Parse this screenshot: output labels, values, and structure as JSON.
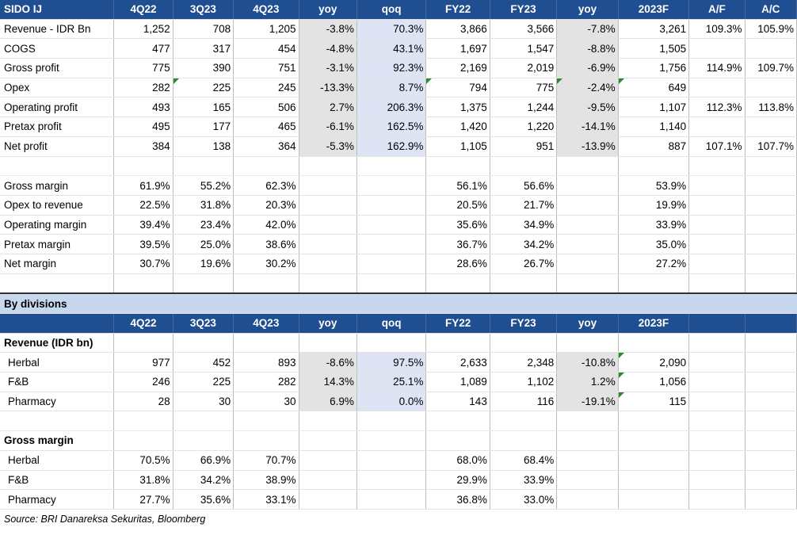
{
  "header": [
    "SIDO IJ",
    "4Q22",
    "3Q23",
    "4Q23",
    "yoy",
    "qoq",
    "FY22",
    "FY23",
    "yoy",
    "2023F",
    "A/F",
    "A/C"
  ],
  "pl_rows": [
    {
      "label": "Revenue - IDR Bn",
      "v": [
        "1,252",
        "708",
        "1,205",
        "-3.8%",
        "70.3%",
        "3,866",
        "3,566",
        "-7.8%",
        "3,261",
        "109.3%",
        "105.9%"
      ]
    },
    {
      "label": "COGS",
      "v": [
        "477",
        "317",
        "454",
        "-4.8%",
        "43.1%",
        "1,697",
        "1,547",
        "-8.8%",
        "1,505",
        "",
        ""
      ]
    },
    {
      "label": "Gross profit",
      "v": [
        "775",
        "390",
        "751",
        "-3.1%",
        "92.3%",
        "2,169",
        "2,019",
        "-6.9%",
        "1,756",
        "114.9%",
        "109.7%"
      ]
    },
    {
      "label": "Opex",
      "v": [
        "282",
        "225",
        "245",
        "-13.3%",
        "8.7%",
        "794",
        "775",
        "-2.4%",
        "649",
        "",
        ""
      ]
    },
    {
      "label": "Operating profit",
      "v": [
        "493",
        "165",
        "506",
        "2.7%",
        "206.3%",
        "1,375",
        "1,244",
        "-9.5%",
        "1,107",
        "112.3%",
        "113.8%"
      ]
    },
    {
      "label": "Pretax profit",
      "v": [
        "495",
        "177",
        "465",
        "-6.1%",
        "162.5%",
        "1,420",
        "1,220",
        "-14.1%",
        "1,140",
        "",
        ""
      ]
    },
    {
      "label": "Net profit",
      "v": [
        "384",
        "138",
        "364",
        "-5.3%",
        "162.9%",
        "1,105",
        "951",
        "-13.9%",
        "887",
        "107.1%",
        "107.7%"
      ]
    }
  ],
  "margin_rows": [
    {
      "label": "Gross margin",
      "v": [
        "61.9%",
        "55.2%",
        "62.3%",
        "",
        "",
        "56.1%",
        "56.6%",
        "",
        "53.9%",
        "",
        ""
      ]
    },
    {
      "label": "Opex to revenue",
      "v": [
        "22.5%",
        "31.8%",
        "20.3%",
        "",
        "",
        "20.5%",
        "21.7%",
        "",
        "19.9%",
        "",
        ""
      ]
    },
    {
      "label": "Operating margin",
      "v": [
        "39.4%",
        "23.4%",
        "42.0%",
        "",
        "",
        "35.6%",
        "34.9%",
        "",
        "33.9%",
        "",
        ""
      ]
    },
    {
      "label": "Pretax margin",
      "v": [
        "39.5%",
        "25.0%",
        "38.6%",
        "",
        "",
        "36.7%",
        "34.2%",
        "",
        "35.0%",
        "",
        ""
      ]
    },
    {
      "label": "Net margin",
      "v": [
        "30.7%",
        "19.6%",
        "30.2%",
        "",
        "",
        "28.6%",
        "26.7%",
        "",
        "27.2%",
        "",
        ""
      ]
    }
  ],
  "divisions_title": "By divisions",
  "div_header": [
    "",
    "4Q22",
    "3Q23",
    "4Q23",
    "yoy",
    "qoq",
    "FY22",
    "FY23",
    "yoy",
    "2023F",
    "",
    ""
  ],
  "rev_title": "Revenue (IDR bn)",
  "rev_rows": [
    {
      "label": "Herbal",
      "v": [
        "977",
        "452",
        "893",
        "-8.6%",
        "97.5%",
        "2,633",
        "2,348",
        "-10.8%",
        "2,090",
        "",
        ""
      ]
    },
    {
      "label": "F&B",
      "v": [
        "246",
        "225",
        "282",
        "14.3%",
        "25.1%",
        "1,089",
        "1,102",
        "1.2%",
        "1,056",
        "",
        ""
      ]
    },
    {
      "label": "Pharmacy",
      "v": [
        "28",
        "30",
        "30",
        "6.9%",
        "0.0%",
        "143",
        "116",
        "-19.1%",
        "115",
        "",
        ""
      ]
    }
  ],
  "gm_title": "Gross margin",
  "gm_rows": [
    {
      "label": "Herbal",
      "v": [
        "70.5%",
        "66.9%",
        "70.7%",
        "",
        "",
        "68.0%",
        "68.4%",
        "",
        "",
        "",
        ""
      ]
    },
    {
      "label": "F&B",
      "v": [
        "31.8%",
        "34.2%",
        "38.9%",
        "",
        "",
        "29.9%",
        "33.9%",
        "",
        "",
        "",
        ""
      ]
    },
    {
      "label": "Pharmacy",
      "v": [
        "27.7%",
        "35.6%",
        "33.1%",
        "",
        "",
        "36.8%",
        "33.0%",
        "",
        "",
        "",
        ""
      ]
    }
  ],
  "source": "Source: BRI Danareksa Sekuritas, Bloomberg"
}
